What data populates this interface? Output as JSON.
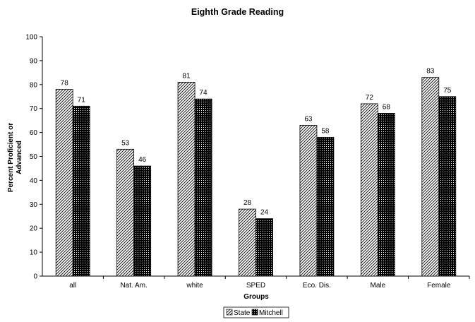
{
  "chart_data": {
    "type": "bar",
    "title": "Eighth Grade Reading",
    "xlabel": "Groups",
    "ylabel": "Percent Proficient or Advanced",
    "ylabel_lines": [
      "Percent Proficient or",
      "Advanced"
    ],
    "categories": [
      "all",
      "Nat. Am.",
      "white",
      "SPED",
      "Eco. Dis.",
      "Male",
      "Female"
    ],
    "series": [
      {
        "name": "State",
        "values": [
          78,
          53,
          81,
          28,
          63,
          72,
          83
        ],
        "pattern": "diagonal-hatch"
      },
      {
        "name": "Mitchell",
        "values": [
          71,
          46,
          74,
          24,
          58,
          68,
          75
        ],
        "pattern": "dark-checker"
      }
    ],
    "ylim": [
      0,
      100
    ],
    "yticks": [
      0,
      10,
      20,
      30,
      40,
      50,
      60,
      70,
      80,
      90,
      100
    ],
    "grid": false,
    "data_labels": true,
    "legend": {
      "position": "bottom-center"
    },
    "colors": {
      "bar_outline": "#000000",
      "state_hatch": "#000000",
      "mitchell_fill": "#000000"
    }
  }
}
